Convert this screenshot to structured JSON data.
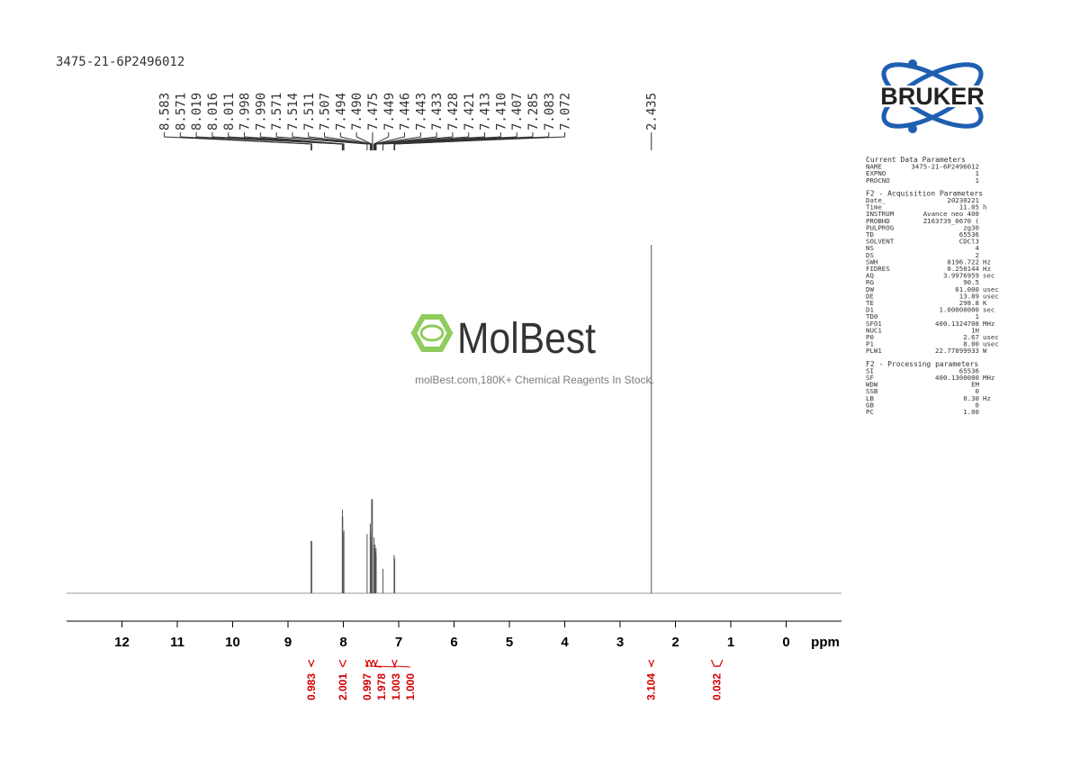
{
  "chart_data": {
    "type": "nmr",
    "title": "3475-21-6P2496012",
    "x_label": "ppm",
    "xlim": [
      13,
      -1
    ],
    "xticks": [
      12,
      11,
      10,
      9,
      8,
      7,
      6,
      5,
      4,
      3,
      2,
      1,
      0
    ],
    "color": "#555555",
    "integral_color": "#d40000",
    "peaks": {
      "x": [
        8.583,
        8.571,
        8.019,
        8.016,
        8.011,
        7.998,
        7.99,
        7.571,
        7.514,
        7.511,
        7.507,
        7.494,
        7.49,
        7.475,
        7.449,
        7.446,
        7.443,
        7.433,
        7.428,
        7.421,
        7.413,
        7.41,
        7.407,
        7.285,
        7.083,
        7.072,
        2.435
      ],
      "x_labels": [
        "8.583",
        "8.571",
        "8.019",
        "8.016",
        "8.011",
        "7.998",
        "7.990",
        "7.571",
        "7.514",
        "7.511",
        "7.507",
        "7.494",
        "7.490",
        "7.475",
        "7.449",
        "7.446",
        "7.443",
        "7.433",
        "7.428",
        "7.421",
        "7.413",
        "7.410",
        "7.407",
        "7.285",
        "7.083",
        "7.072",
        "2.435"
      ],
      "values": [
        15,
        15,
        22,
        24,
        22,
        17,
        18,
        17,
        20,
        18,
        16,
        14,
        27,
        27,
        14,
        16,
        13,
        12,
        14,
        11,
        12,
        13,
        11,
        7,
        11,
        10,
        100
      ]
    },
    "integrals": {
      "ranges": [
        [
          8.63,
          8.53
        ],
        [
          8.07,
          7.95
        ],
        [
          7.6,
          7.54
        ],
        [
          7.53,
          7.46
        ],
        [
          7.46,
          7.38
        ],
        [
          7.12,
          7.03
        ],
        [
          2.48,
          2.39
        ],
        [
          1.35,
          1.15
        ]
      ],
      "values": [
        0.983,
        2.001,
        0.997,
        1.978,
        1.003,
        1.0,
        3.104,
        0.032
      ],
      "value_labels": [
        "0.983",
        "2.001",
        "0.997",
        "1.978",
        "1.003",
        "1.000",
        "3.104",
        "0.032"
      ]
    }
  },
  "logo": "BRUKER",
  "watermark": {
    "brand": "MolBest",
    "tagline": "molBest.com,180K+ Chemical Reagents In Stock."
  },
  "parameters": [
    {
      "heading": "Current Data Parameters",
      "rows": [
        [
          "NAME",
          "3475-21-6P2496012"
        ],
        [
          "EXPNO",
          "1"
        ],
        [
          "PROCNO",
          "1"
        ]
      ]
    },
    {
      "heading": "F2 - Acquisition Parameters",
      "rows": [
        [
          "Date_",
          "20230221"
        ],
        [
          "Time",
          "11.05",
          "h"
        ],
        [
          "INSTRUM",
          "Avance neo 400"
        ],
        [
          "PROBHD",
          "Z163739_0670 ("
        ],
        [
          "PULPROG",
          "zg30"
        ],
        [
          "TD",
          "65536"
        ],
        [
          "SOLVENT",
          "CDCl3"
        ],
        [
          "NS",
          "4"
        ],
        [
          "DS",
          "2"
        ],
        [
          "SWH",
          "8196.722",
          "Hz"
        ],
        [
          "FIDRES",
          "0.250144",
          "Hz"
        ],
        [
          "AQ",
          "3.9976959",
          "sec"
        ],
        [
          "RG",
          "90.5"
        ],
        [
          "DW",
          "61.000",
          "usec"
        ],
        [
          "DE",
          "13.89",
          "usec"
        ],
        [
          "TE",
          "298.8",
          "K"
        ],
        [
          "D1",
          "1.00000000",
          "sec"
        ],
        [
          "TD0",
          "1"
        ],
        [
          "SFO1",
          "400.1324708",
          "MHz"
        ],
        [
          "NUC1",
          "1H"
        ],
        [
          "P0",
          "2.67",
          "usec"
        ],
        [
          "P1",
          "8.00",
          "usec"
        ],
        [
          "PLW1",
          "22.77899933",
          "W"
        ]
      ]
    },
    {
      "heading": "F2 - Processing parameters",
      "rows": [
        [
          "SI",
          "65536"
        ],
        [
          "SF",
          "400.1300000",
          "MHz"
        ],
        [
          "WDW",
          "EM"
        ],
        [
          "SSB",
          "0"
        ],
        [
          "LB",
          "0.30",
          "Hz"
        ],
        [
          "GB",
          "0"
        ],
        [
          "PC",
          "1.00"
        ]
      ]
    }
  ]
}
